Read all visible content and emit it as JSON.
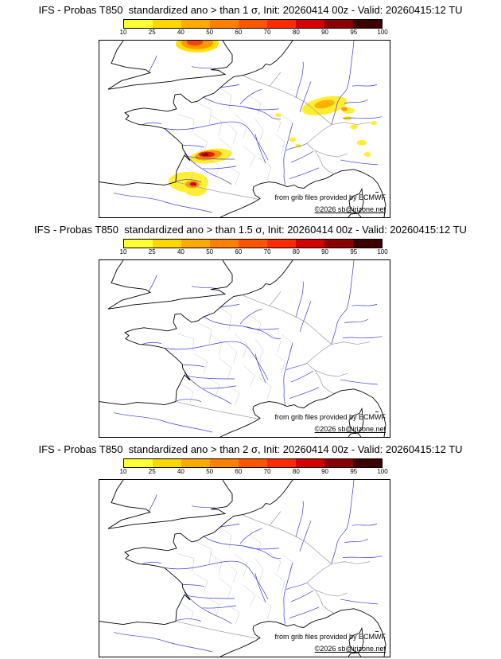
{
  "page": {
    "background": "#ffffff"
  },
  "panels": [
    {
      "id": "sigma-1",
      "title": "IFS - Probas T850  standardized ano > than 1 σ, Init: 20260414 00z - Valid: 20260415:12 TU"
    },
    {
      "id": "sigma-1.5",
      "title": "IFS - Probas T850  standardized ano > than 1.5 σ, Init: 20260414 00z - Valid: 20260415:12 TU"
    },
    {
      "id": "sigma-2",
      "title": "IFS - Probas T850  standardized ano > than 2 σ, Init: 20260414 00z - Valid: 20260415:12 TU"
    }
  ],
  "colorbar": {
    "tick_labels": [
      "10",
      "25",
      "40",
      "50",
      "60",
      "70",
      "80",
      "90",
      "95",
      "100"
    ],
    "colors": [
      "#ffff33",
      "#ffd700",
      "#ffaa00",
      "#ff7f00",
      "#ff5500",
      "#ff2a00",
      "#d40000",
      "#8b0000",
      "#3d0000"
    ]
  },
  "credits": {
    "line1": "from grib files provided by ECMWF",
    "line2": "©2026 sb@irizone.net"
  }
}
